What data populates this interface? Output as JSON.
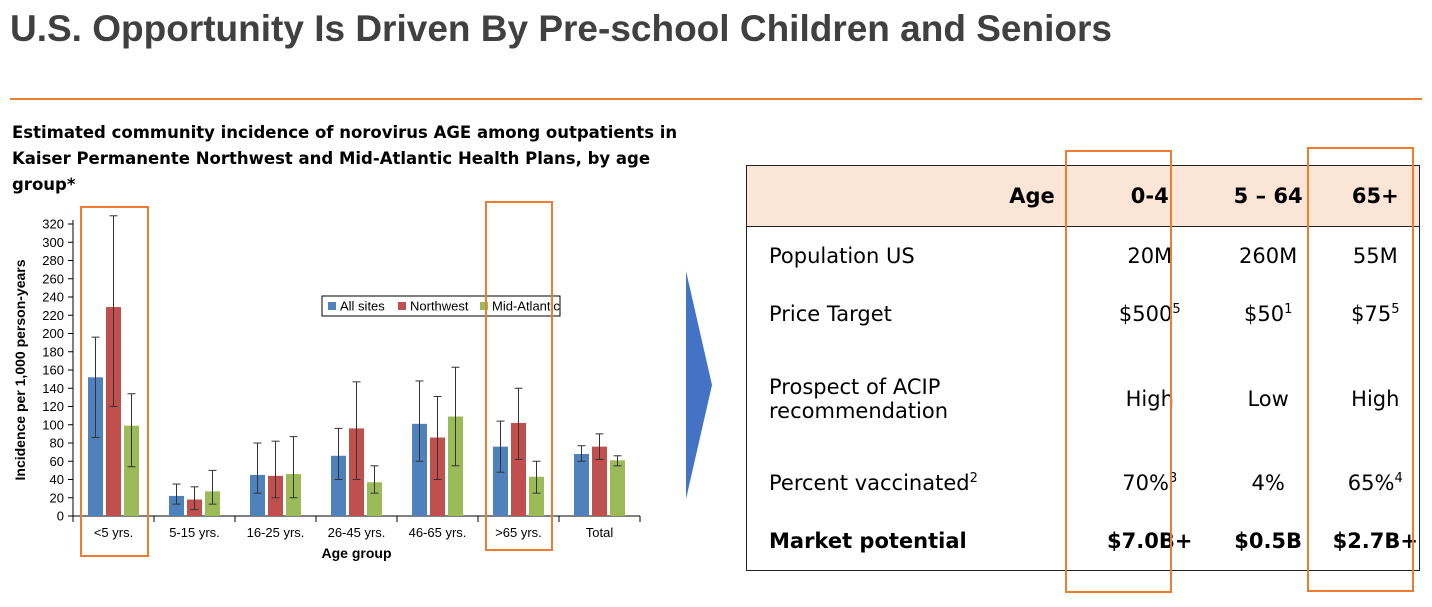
{
  "page": {
    "title": "U.S. Opportunity Is Driven By Pre-school Children and Seniors",
    "chart_subtitle_line1": "Estimated community incidence of norovirus AGE among outpatients in",
    "chart_subtitle_line2": "Kaiser Permanente Northwest and Mid-Atlantic Health Plans, by age group*"
  },
  "colors": {
    "accent": "#ED7D31",
    "header_fill": "#FBE5D6",
    "arrow": "#4472C4",
    "all_sites": "#4F81BD",
    "northwest": "#C0504D",
    "mid_atlantic": "#9BBB59"
  },
  "chart_data": {
    "type": "bar",
    "xlabel": "Age group",
    "ylabel": "Incidence per 1,000 person-years",
    "ylim": [
      0,
      320
    ],
    "yticks": [
      0,
      20,
      40,
      60,
      80,
      100,
      120,
      140,
      160,
      180,
      200,
      220,
      240,
      260,
      280,
      300,
      320
    ],
    "categories": [
      "<5 yrs.",
      "5-15 yrs.",
      "16-25 yrs.",
      "26-45 yrs.",
      "46-65 yrs.",
      ">65 yrs.",
      "Total"
    ],
    "legend": "top-right",
    "series": [
      {
        "name": "All sites",
        "values": [
          152,
          22,
          45,
          66,
          101,
          76,
          68
        ],
        "err_low": [
          86,
          13,
          25,
          40,
          60,
          48,
          60
        ],
        "err_high": [
          196,
          35,
          80,
          96,
          148,
          104,
          77
        ]
      },
      {
        "name": "Northwest",
        "values": [
          229,
          18,
          44,
          96,
          86,
          102,
          76
        ],
        "err_low": [
          120,
          7,
          20,
          40,
          40,
          62,
          62
        ],
        "err_high": [
          329,
          32,
          82,
          147,
          131,
          140,
          90
        ]
      },
      {
        "name": "Mid-Atlantic",
        "values": [
          99,
          27,
          46,
          37,
          109,
          43,
          61
        ],
        "err_low": [
          54,
          13,
          20,
          25,
          55,
          25,
          55
        ],
        "err_high": [
          134,
          50,
          87,
          55,
          163,
          60,
          66
        ]
      }
    ]
  },
  "table": {
    "headers": [
      "Age",
      "0-4",
      "5 – 64",
      "65+"
    ],
    "rows": [
      {
        "label": "Population US",
        "label_sup": "",
        "bold": false,
        "cells": [
          {
            "v": "20M",
            "s": ""
          },
          {
            "v": "260M",
            "s": ""
          },
          {
            "v": "55M",
            "s": ""
          }
        ]
      },
      {
        "label": "Price Target",
        "label_sup": "",
        "bold": false,
        "cells": [
          {
            "v": "$500",
            "s": "5"
          },
          {
            "v": "$50",
            "s": "1"
          },
          {
            "v": "$75",
            "s": "5"
          }
        ]
      },
      {
        "label": "Prospect of ACIP recommendation",
        "label_line1": "Prospect of ACIP",
        "label_line2": "recommendation",
        "label_sup": "",
        "bold": false,
        "cells": [
          {
            "v": "High",
            "s": ""
          },
          {
            "v": "Low",
            "s": ""
          },
          {
            "v": "High",
            "s": ""
          }
        ]
      },
      {
        "label": "Percent vaccinated",
        "label_sup": "2",
        "bold": false,
        "cells": [
          {
            "v": "70%",
            "s": "3"
          },
          {
            "v": "4%",
            "s": ""
          },
          {
            "v": "65%",
            "s": "4"
          }
        ]
      },
      {
        "label": "Market potential",
        "label_sup": "",
        "bold": true,
        "cells": [
          {
            "v": "$7.0B+",
            "s": ""
          },
          {
            "v": "$0.5B",
            "s": ""
          },
          {
            "v": "$2.7B+",
            "s": ""
          }
        ]
      }
    ]
  }
}
